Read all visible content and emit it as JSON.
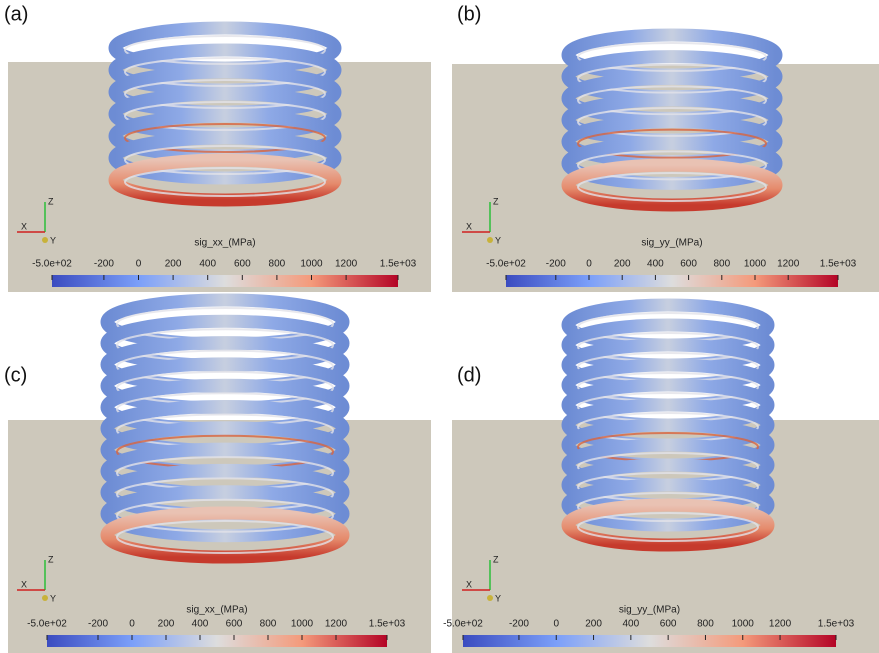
{
  "panels": [
    {
      "label": "(a)",
      "triad": {
        "z": "Z",
        "x": "X",
        "y": "Y"
      },
      "colorbar": {
        "title": "sig_xx_(MPa)",
        "range": [
          -500,
          1500
        ],
        "ticks": [
          {
            "value": -500,
            "label": "-5.0e+02"
          },
          -200,
          0,
          200,
          400,
          600,
          800,
          1000,
          1200,
          {
            "value": 1500,
            "label": "1.5e+03"
          }
        ]
      }
    },
    {
      "label": "(b)",
      "triad": {
        "z": "Z",
        "x": "X",
        "y": "Y"
      },
      "colorbar": {
        "title": "sig_yy_(MPa)",
        "range": [
          -500,
          1500
        ],
        "ticks": [
          {
            "value": -500,
            "label": "-5.0e+02"
          },
          -200,
          0,
          200,
          400,
          600,
          800,
          1000,
          1200,
          {
            "value": 1500,
            "label": "1.5e+03"
          }
        ]
      }
    },
    {
      "label": "(c)",
      "triad": {
        "z": "Z",
        "x": "X",
        "y": "Y"
      },
      "colorbar": {
        "title": "sig_xx_(MPa)",
        "range": [
          -500,
          1500
        ],
        "ticks": [
          {
            "value": -500,
            "label": "-5.0e+02"
          },
          -200,
          0,
          200,
          400,
          600,
          800,
          1000,
          1200,
          {
            "value": 1500,
            "label": "1.5e+03"
          }
        ]
      }
    },
    {
      "label": "(d)",
      "triad": {
        "z": "Z",
        "x": "X",
        "y": "Y"
      },
      "colorbar": {
        "title": "sig_yy_(MPa)",
        "range": [
          -500,
          1500
        ],
        "ticks": [
          {
            "value": -500,
            "label": "-5.0e+02"
          },
          -200,
          0,
          200,
          400,
          600,
          800,
          1000,
          1200,
          {
            "value": 1500,
            "label": "1.5e+03"
          }
        ]
      }
    }
  ]
}
